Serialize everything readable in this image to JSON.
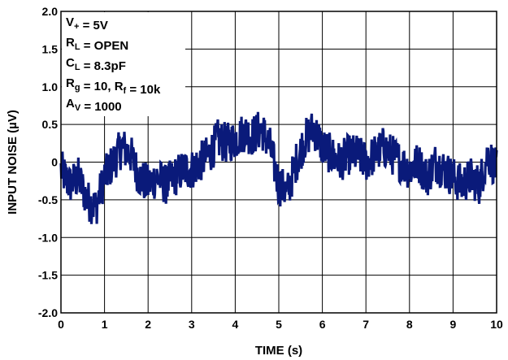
{
  "chart_data": {
    "type": "line",
    "title": "",
    "xlabel": "TIME (s)",
    "ylabel": "INPUT NOISE (µV)",
    "xlim": [
      0,
      10
    ],
    "ylim": [
      -2.0,
      2.0
    ],
    "xticks": [
      "0",
      "1",
      "2",
      "3",
      "4",
      "5",
      "6",
      "7",
      "8",
      "9",
      "10"
    ],
    "yticks": [
      "2.0",
      "1.5",
      "1.0",
      "0.5",
      "0",
      "-0.5",
      "-1.0",
      "-1.5",
      "-2.0"
    ],
    "grid": true,
    "line_color": "#0a1a7a",
    "annotations": [
      {
        "main": "V",
        "sub": "+",
        "rest": " = 5V"
      },
      {
        "main": "R",
        "sub": "L",
        "rest": " = OPEN"
      },
      {
        "main": "C",
        "sub": "L",
        "rest": " = 8.3pF"
      },
      {
        "main": "R",
        "sub": "g",
        "rest": " = 10, R",
        "sub2": "f",
        "rest2": " = 10k"
      },
      {
        "main": "A",
        "sub": "V",
        "rest": " = 1000"
      }
    ],
    "series": [
      {
        "x": [
          0.0,
          0.2,
          0.4,
          0.6,
          0.8,
          1.0,
          1.2,
          1.4,
          1.6,
          1.8,
          2.0,
          2.2,
          2.4,
          2.6,
          2.8,
          3.0,
          3.2,
          3.4,
          3.6,
          3.8,
          4.0,
          4.2,
          4.4,
          4.6,
          4.8,
          5.0,
          5.2,
          5.4,
          5.6,
          5.8,
          6.0,
          6.2,
          6.4,
          6.6,
          6.8,
          7.0,
          7.2,
          7.4,
          7.6,
          7.8,
          8.0,
          8.2,
          8.4,
          8.6,
          8.8,
          9.0,
          9.2,
          9.4,
          9.6,
          9.8,
          10.0
        ],
        "values": [
          -0.1,
          -0.3,
          -0.2,
          -0.5,
          -0.6,
          -0.2,
          0.0,
          0.2,
          0.1,
          -0.2,
          -0.3,
          -0.2,
          -0.3,
          -0.2,
          -0.1,
          -0.1,
          0.0,
          0.1,
          0.3,
          0.25,
          0.3,
          0.4,
          0.35,
          0.45,
          0.2,
          -0.3,
          -0.4,
          0.0,
          0.3,
          0.45,
          0.2,
          0.1,
          0.0,
          0.1,
          0.1,
          0.0,
          0.1,
          0.2,
          0.1,
          0.0,
          -0.1,
          0.0,
          -0.2,
          0.0,
          -0.1,
          -0.2,
          -0.3,
          -0.2,
          -0.3,
          0.1,
          -0.1
        ]
      }
    ]
  }
}
